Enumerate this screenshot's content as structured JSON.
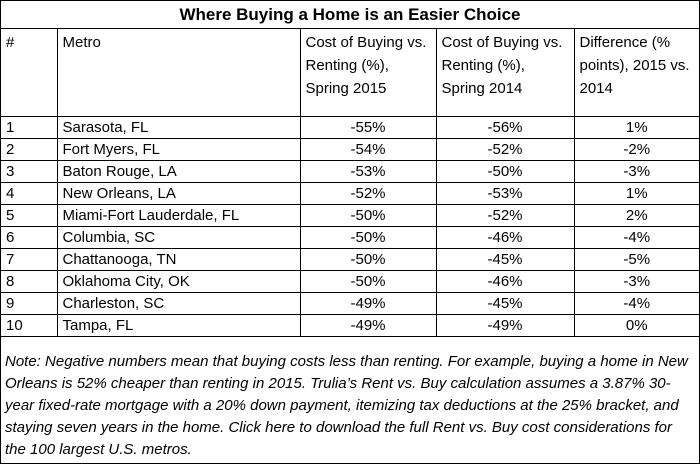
{
  "title": "Where Buying a Home is an Easier Choice",
  "columns": [
    "#",
    "Metro",
    "Cost of Buying vs. Renting (%), Spring 2015",
    "Cost of Buying vs. Renting (%), Spring 2014",
    "Difference (% points), 2015 vs. 2014"
  ],
  "rows": [
    {
      "rank": "1",
      "metro": "Sarasota, FL",
      "c2015": "-55%",
      "c2014": "-56%",
      "diff": "1%"
    },
    {
      "rank": "2",
      "metro": "Fort Myers, FL",
      "c2015": "-54%",
      "c2014": "-52%",
      "diff": "-2%"
    },
    {
      "rank": "3",
      "metro": "Baton Rouge, LA",
      "c2015": "-53%",
      "c2014": "-50%",
      "diff": "-3%"
    },
    {
      "rank": "4",
      "metro": "New Orleans, LA",
      "c2015": "-52%",
      "c2014": "-53%",
      "diff": "1%"
    },
    {
      "rank": "5",
      "metro": "Miami-Fort Lauderdale, FL",
      "c2015": "-50%",
      "c2014": "-52%",
      "diff": "2%"
    },
    {
      "rank": "6",
      "metro": "Columbia, SC",
      "c2015": "-50%",
      "c2014": "-46%",
      "diff": "-4%"
    },
    {
      "rank": "7",
      "metro": "Chattanooga, TN",
      "c2015": "-50%",
      "c2014": "-45%",
      "diff": "-5%"
    },
    {
      "rank": "8",
      "metro": "Oklahoma City, OK",
      "c2015": "-50%",
      "c2014": "-46%",
      "diff": "-3%"
    },
    {
      "rank": "9",
      "metro": "Charleston, SC",
      "c2015": "-49%",
      "c2014": "-45%",
      "diff": "-4%"
    },
    {
      "rank": "10",
      "metro": "Tampa, FL",
      "c2015": "-49%",
      "c2014": "-49%",
      "diff": "0%"
    }
  ],
  "note": "Note: Negative numbers mean that buying costs less than renting. For example, buying a home in New Orleans is 52% cheaper than renting in 2015. Trulia’s Rent vs. Buy calculation assumes a 3.87% 30-year fixed-rate mortgage with a 20% down payment, itemizing tax deductions at the 25% bracket, and staying seven years in the home. Click here to download the full Rent vs. Buy cost considerations for the 100 largest U.S. metros."
}
